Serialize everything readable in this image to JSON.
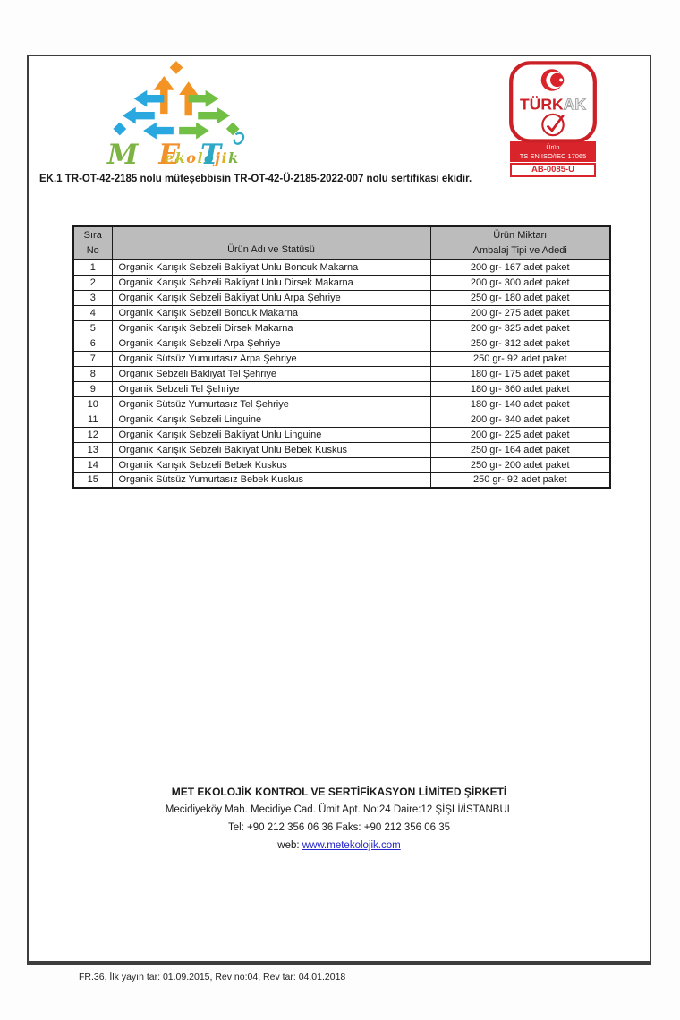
{
  "page": {
    "annex_note": "EK.1 TR-OT-42-2185 nolu müteşebbisin TR-OT-42-Ü-2185-2022-007 nolu sertifikası ekidir.",
    "form_note": "FR.36, İlk yayın tar: 01.09.2015, Rev no:04, Rev tar: 04.01.2018"
  },
  "logos": {
    "met": {
      "letters": [
        {
          "ch": "M",
          "color": "#7cb342"
        },
        {
          "ch": "E",
          "color": "#f0912d"
        },
        {
          "ch": "T",
          "color": "#2fa8c7"
        }
      ],
      "tagline_letters": [
        {
          "ch": "e",
          "color": "#d9b427"
        },
        {
          "ch": "k",
          "color": "#bcc434"
        },
        {
          "ch": "o",
          "color": "#f39324"
        },
        {
          "ch": "l",
          "color": "#bcc434"
        },
        {
          "ch": "o",
          "color": "#2aa9b8"
        },
        {
          "ch": "j",
          "color": "#f39324"
        },
        {
          "ch": "i",
          "color": "#d9b427"
        },
        {
          "ch": "k",
          "color": "#7cb342"
        }
      ],
      "colors": {
        "orange": "#f39324",
        "blue": "#29a8df",
        "green": "#71bf44",
        "teal": "#2fa8c7"
      }
    },
    "turkak": {
      "name_primary": "TÜRK",
      "name_secondary": "AK",
      "scope_line1": "Ürün",
      "scope_line2": "TS EN ISO/IEC 17065",
      "accreditation_no": "AB-0085-U",
      "red": "#cc2027"
    }
  },
  "table": {
    "headers": {
      "col1_line1": "Sıra",
      "col1_line2": "No",
      "col2": "Ürün Adı ve Statüsü",
      "col3_line1": "Ürün Miktarı",
      "col3_line2": "Ambalaj Tipi ve Adedi"
    },
    "rows": [
      {
        "no": "1",
        "name": "Organik Karışık Sebzeli Bakliyat Unlu Boncuk Makarna",
        "qty": "200 gr- 167 adet paket"
      },
      {
        "no": "2",
        "name": "Organik Karışık Sebzeli Bakliyat Unlu Dirsek Makarna",
        "qty": "200 gr- 300 adet paket"
      },
      {
        "no": "3",
        "name": "Organik Karışık Sebzeli Bakliyat Unlu Arpa Şehriye",
        "qty": "250 gr- 180 adet paket"
      },
      {
        "no": "4",
        "name": "Organik Karışık Sebzeli Boncuk Makarna",
        "qty": "200 gr- 275 adet paket"
      },
      {
        "no": "5",
        "name": "Organik Karışık Sebzeli Dirsek Makarna",
        "qty": "200 gr- 325 adet paket"
      },
      {
        "no": "6",
        "name": "Organik Karışık Sebzeli Arpa Şehriye",
        "qty": "250 gr- 312 adet paket"
      },
      {
        "no": "7",
        "name": "Organik Sütsüz Yumurtasız Arpa Şehriye",
        "qty": "250 gr- 92 adet paket"
      },
      {
        "no": "8",
        "name": "Organik Sebzeli Bakliyat Tel Şehriye",
        "qty": "180 gr- 175 adet paket"
      },
      {
        "no": "9",
        "name": "Organik Sebzeli Tel Şehriye",
        "qty": "180 gr- 360 adet paket"
      },
      {
        "no": "10",
        "name": "Organik Sütsüz Yumurtasız Tel Şehriye",
        "qty": "180 gr- 140 adet paket"
      },
      {
        "no": "11",
        "name": "Organik Karışık Sebzeli Linguine",
        "qty": "200 gr- 340 adet paket"
      },
      {
        "no": "12",
        "name": "Organik Karışık Sebzeli Bakliyat Unlu Linguine",
        "qty": "200 gr- 225 adet paket"
      },
      {
        "no": "13",
        "name": "Organik Karışık Sebzeli Bakliyat Unlu Bebek Kuskus",
        "qty": "250 gr- 164 adet paket"
      },
      {
        "no": "14",
        "name": "Organik Karışık Sebzeli Bebek Kuskus",
        "qty": "250 gr- 200 adet paket"
      },
      {
        "no": "15",
        "name": "Organik Sütsüz Yumurtasız Bebek Kuskus",
        "qty": "250 gr- 92 adet paket"
      }
    ]
  },
  "footer": {
    "company": "MET EKOLOJİK KONTROL VE SERTİFİKASYON LİMİTED ŞİRKETİ",
    "address": "Mecidiyeköy Mah. Mecidiye Cad. Ümit Apt. No:24 Daire:12 ŞİŞLİ/İSTANBUL",
    "phone_line": "Tel: +90 212 356 06 36 Faks: +90 212 356 06 35",
    "web_label": "web:",
    "web_url": "www.metekolojik.com"
  }
}
